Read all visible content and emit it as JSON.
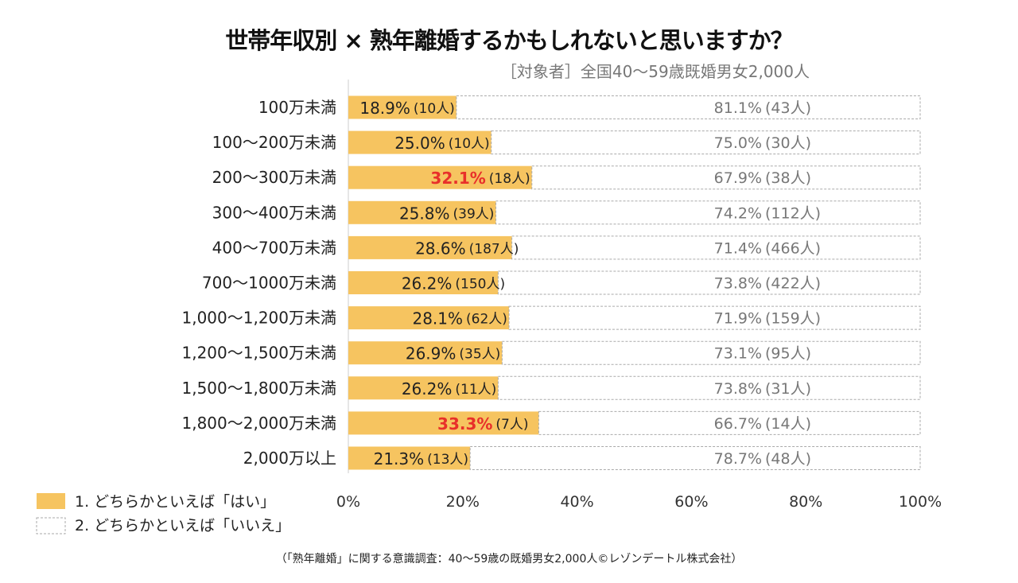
{
  "chart_data": {
    "type": "bar",
    "stacked": true,
    "orientation": "horizontal",
    "title": "世帯年収別 × 熟年離婚するかもしれないと思いますか？",
    "subtitle": "［対象者］全国40～59歳既婚男女2,000人",
    "categories": [
      "100万未満",
      "100～200万未満",
      "200～300万未満",
      "300～400万未満",
      "400～700万未満",
      "700～1000万未満",
      "1,000～1,200万未満",
      "1,200～1,500万未満",
      "1,500～1,800万未満",
      "1,800～2,000万未満",
      "2,000万以上"
    ],
    "series": [
      {
        "name": "1. どちらかといえば「はい」",
        "color": "#f6c460",
        "values": [
          18.9,
          25.0,
          32.1,
          25.8,
          28.6,
          26.2,
          28.1,
          26.9,
          26.2,
          33.3,
          21.3
        ],
        "counts": [
          "(10人)",
          "(10人)",
          "(18人)",
          "(39人)",
          "(187人)",
          "(150人)",
          "(62人)",
          "(35人)",
          "(11人)",
          "(7人)",
          "(13人)"
        ],
        "labels": [
          "18.9%",
          "25.0%",
          "32.1%",
          "25.8%",
          "28.6%",
          "26.2%",
          "28.1%",
          "26.9%",
          "26.2%",
          "33.3%",
          "21.3%"
        ]
      },
      {
        "name": "2. どちらかといえば「いいえ」",
        "color": "#ffffff",
        "values": [
          81.1,
          75.0,
          67.9,
          74.2,
          71.4,
          73.8,
          71.9,
          73.1,
          73.8,
          66.7,
          78.7
        ],
        "counts": [
          "(43人)",
          "(30人)",
          "(38人)",
          "(112人)",
          "(466人)",
          "(422人)",
          "(159人)",
          "(95人)",
          "(31人)",
          "(14人)",
          "(48人)"
        ],
        "labels": [
          "81.1%",
          "75.0%",
          "67.9%",
          "74.2%",
          "71.4%",
          "73.8%",
          "71.9%",
          "73.1%",
          "73.8%",
          "66.7%",
          "78.7%"
        ]
      }
    ],
    "highlight_indices": [
      2,
      9
    ],
    "highlight_color": "#e8302a",
    "xlim": [
      0,
      100
    ],
    "xticks": [
      "0%",
      "20%",
      "40%",
      "60%",
      "80%",
      "100%"
    ],
    "legend_position": "bottom-left",
    "grid": false,
    "footnote": "（「熟年離婚」に関する意識調査：40～59歳の既婚男女2,000人©レゾンデートル株式会社）"
  }
}
